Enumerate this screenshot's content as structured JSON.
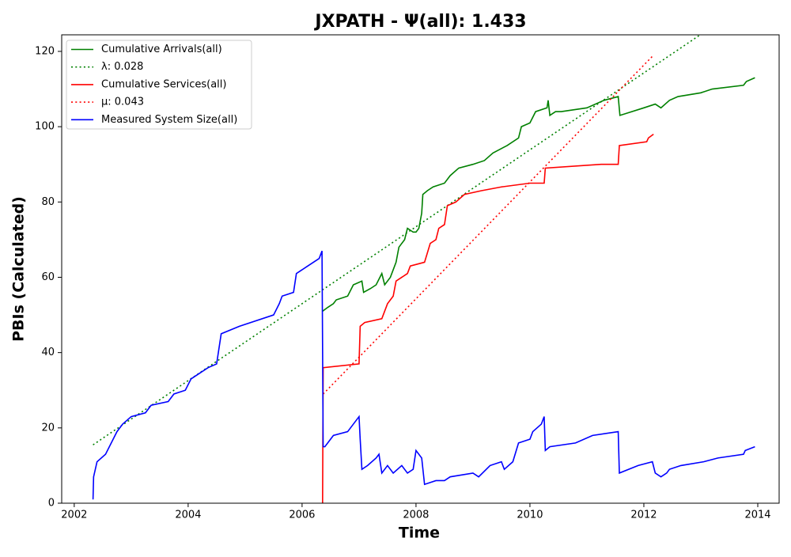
{
  "chart_data": {
    "type": "line",
    "title": "JXPATH -  Ψ(all): 1.433",
    "x_label": "Time",
    "y_label": "PBIs (Calculated)",
    "xlim": [
      2001.78,
      2014.375
    ],
    "xticks": [
      2002,
      2004,
      2006,
      2008,
      2010,
      2012,
      2014
    ],
    "ylim": [
      0,
      124.4
    ],
    "yticks": [
      0,
      20,
      40,
      60,
      80,
      100,
      120
    ],
    "legend": "upper left",
    "series": [
      {
        "name": "Cumulative Arrivals(all)",
        "color": "#008000",
        "linestyle": "solid",
        "x": [
          2006.36,
          2006.45,
          2006.55,
          2006.6,
          2006.8,
          2006.9,
          2007.05,
          2007.08,
          2007.2,
          2007.3,
          2007.4,
          2007.45,
          2007.55,
          2007.65,
          2007.7,
          2007.8,
          2007.85,
          2007.95,
          2008.0,
          2008.05,
          2008.1,
          2008.12,
          2008.2,
          2008.3,
          2008.5,
          2008.6,
          2008.75,
          2009.0,
          2009.2,
          2009.35,
          2009.6,
          2009.8,
          2009.85,
          2010.0,
          2010.1,
          2010.3,
          2010.32,
          2010.35,
          2010.45,
          2010.55,
          2011.0,
          2011.3,
          2011.55,
          2011.58,
          2012.0,
          2012.2,
          2012.3,
          2012.45,
          2012.6,
          2013.0,
          2013.2,
          2013.75,
          2013.8,
          2013.95
        ],
        "values": [
          51,
          52,
          53,
          54,
          55,
          58,
          59,
          56,
          57,
          58,
          61,
          58,
          60,
          64,
          68,
          70,
          73,
          72,
          72,
          73,
          77,
          82,
          83,
          84,
          85,
          87,
          89,
          90,
          91,
          93,
          95,
          97,
          100,
          101,
          104,
          105,
          107,
          103,
          104,
          104,
          105,
          107,
          108,
          103,
          105,
          106,
          105,
          107,
          108,
          109,
          110,
          111,
          112,
          113
        ]
      },
      {
        "name": "λ: 0.028",
        "color": "#008000",
        "linestyle": "dotted",
        "x": [
          2002.33,
          2012.99
        ],
        "values": [
          15.5,
          124.4
        ]
      },
      {
        "name": "Cumulative Services(all)",
        "color": "#ff0000",
        "linestyle": "solid",
        "x": [
          2006.36,
          2006.37,
          2007.0,
          2007.02,
          2007.1,
          2007.4,
          2007.5,
          2007.6,
          2007.65,
          2007.85,
          2007.9,
          2008.15,
          2008.25,
          2008.35,
          2008.4,
          2008.5,
          2008.55,
          2008.7,
          2008.85,
          2009.15,
          2009.5,
          2010.0,
          2010.25,
          2010.27,
          2011.25,
          2011.55,
          2011.57,
          2012.05,
          2012.08,
          2012.17
        ],
        "values": [
          0,
          36,
          37,
          47,
          48,
          49,
          53,
          55,
          59,
          61,
          63,
          64,
          69,
          70,
          73,
          74,
          79,
          80,
          82,
          83,
          84,
          85,
          85,
          89,
          90,
          90,
          95,
          96,
          97,
          98
        ]
      },
      {
        "name": "μ: 0.043",
        "color": "#ff0000",
        "linestyle": "dotted",
        "x": [
          2006.37,
          2012.17
        ],
        "values": [
          29,
          119
        ]
      },
      {
        "name": "Measured System Size(all)",
        "color": "#0000ff",
        "linestyle": "solid",
        "x": [
          2002.33,
          2002.34,
          2002.4,
          2002.55,
          2002.65,
          2002.75,
          2002.85,
          2003.0,
          2003.25,
          2003.35,
          2003.65,
          2003.75,
          2003.95,
          2004.05,
          2004.35,
          2004.5,
          2004.58,
          2004.9,
          2005.5,
          2005.6,
          2005.65,
          2005.85,
          2005.9,
          2006.1,
          2006.3,
          2006.35,
          2006.37,
          2006.4,
          2006.55,
          2006.8,
          2006.9,
          2007.0,
          2007.02,
          2007.05,
          2007.15,
          2007.3,
          2007.35,
          2007.4,
          2007.5,
          2007.6,
          2007.75,
          2007.85,
          2007.95,
          2008.0,
          2008.1,
          2008.15,
          2008.35,
          2008.5,
          2008.6,
          2009.0,
          2009.1,
          2009.3,
          2009.5,
          2009.55,
          2009.7,
          2009.8,
          2010.0,
          2010.05,
          2010.2,
          2010.25,
          2010.27,
          2010.35,
          2010.8,
          2011.1,
          2011.55,
          2011.57,
          2011.9,
          2012.15,
          2012.2,
          2012.3,
          2012.4,
          2012.45,
          2012.65,
          2013.05,
          2013.3,
          2013.75,
          2013.78,
          2013.95
        ],
        "values": [
          1,
          7,
          11,
          13,
          16,
          19,
          21,
          23,
          24,
          26,
          27,
          29,
          30,
          33,
          36,
          37,
          45,
          47,
          50,
          53,
          55,
          56,
          61,
          63,
          65,
          67,
          15,
          15,
          18,
          19,
          21,
          23,
          17,
          9,
          10,
          12,
          13,
          8,
          10,
          8,
          10,
          8,
          9,
          14,
          12,
          5,
          6,
          6,
          7,
          8,
          7,
          10,
          11,
          9,
          11,
          16,
          17,
          19,
          21,
          23,
          14,
          15,
          16,
          18,
          19,
          8,
          10,
          11,
          8,
          7,
          8,
          9,
          10,
          11,
          12,
          13,
          14,
          15
        ]
      }
    ]
  }
}
